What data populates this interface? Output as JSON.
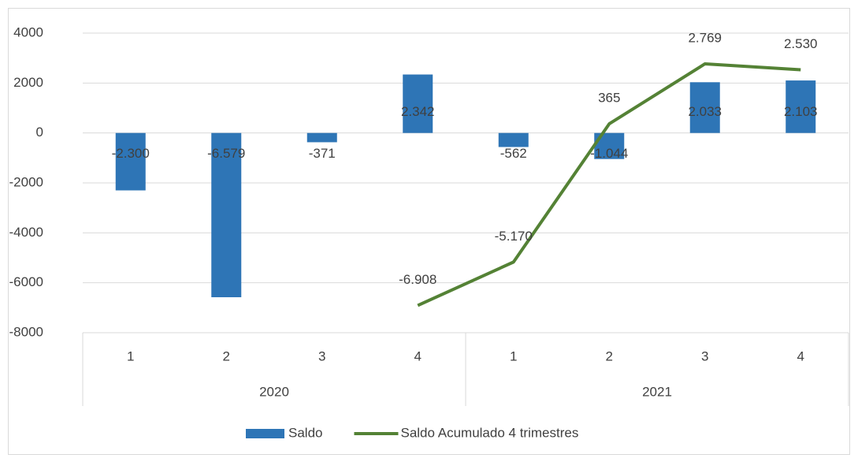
{
  "chart_data": {
    "type": "bar",
    "categories": [
      "1",
      "2",
      "3",
      "4",
      "1",
      "2",
      "3",
      "4"
    ],
    "groups": [
      "2020",
      "2021"
    ],
    "series": [
      {
        "name": "Saldo",
        "type": "bar",
        "color": "#2e75b6",
        "values": [
          -2300,
          -6579,
          -371,
          2342,
          -562,
          -1044,
          2033,
          2103
        ],
        "value_labels": [
          "-2.300",
          "-6.579",
          "-371",
          "2.342",
          "-562",
          "-1.044",
          "2.033",
          "2.103"
        ]
      },
      {
        "name": "Saldo Acumulado 4 trimestres",
        "type": "line",
        "color": "#548235",
        "values": [
          null,
          null,
          null,
          -6908,
          -5170,
          365,
          2769,
          2530
        ],
        "value_labels": [
          null,
          null,
          null,
          "-6.908",
          "-5.170",
          "365",
          "2.769",
          "2.530"
        ]
      }
    ],
    "ylim": [
      -8000,
      4000
    ],
    "yticks": [
      -8000,
      -6000,
      -4000,
      -2000,
      0,
      2000,
      4000
    ],
    "grid": true,
    "legend": "bottom"
  }
}
